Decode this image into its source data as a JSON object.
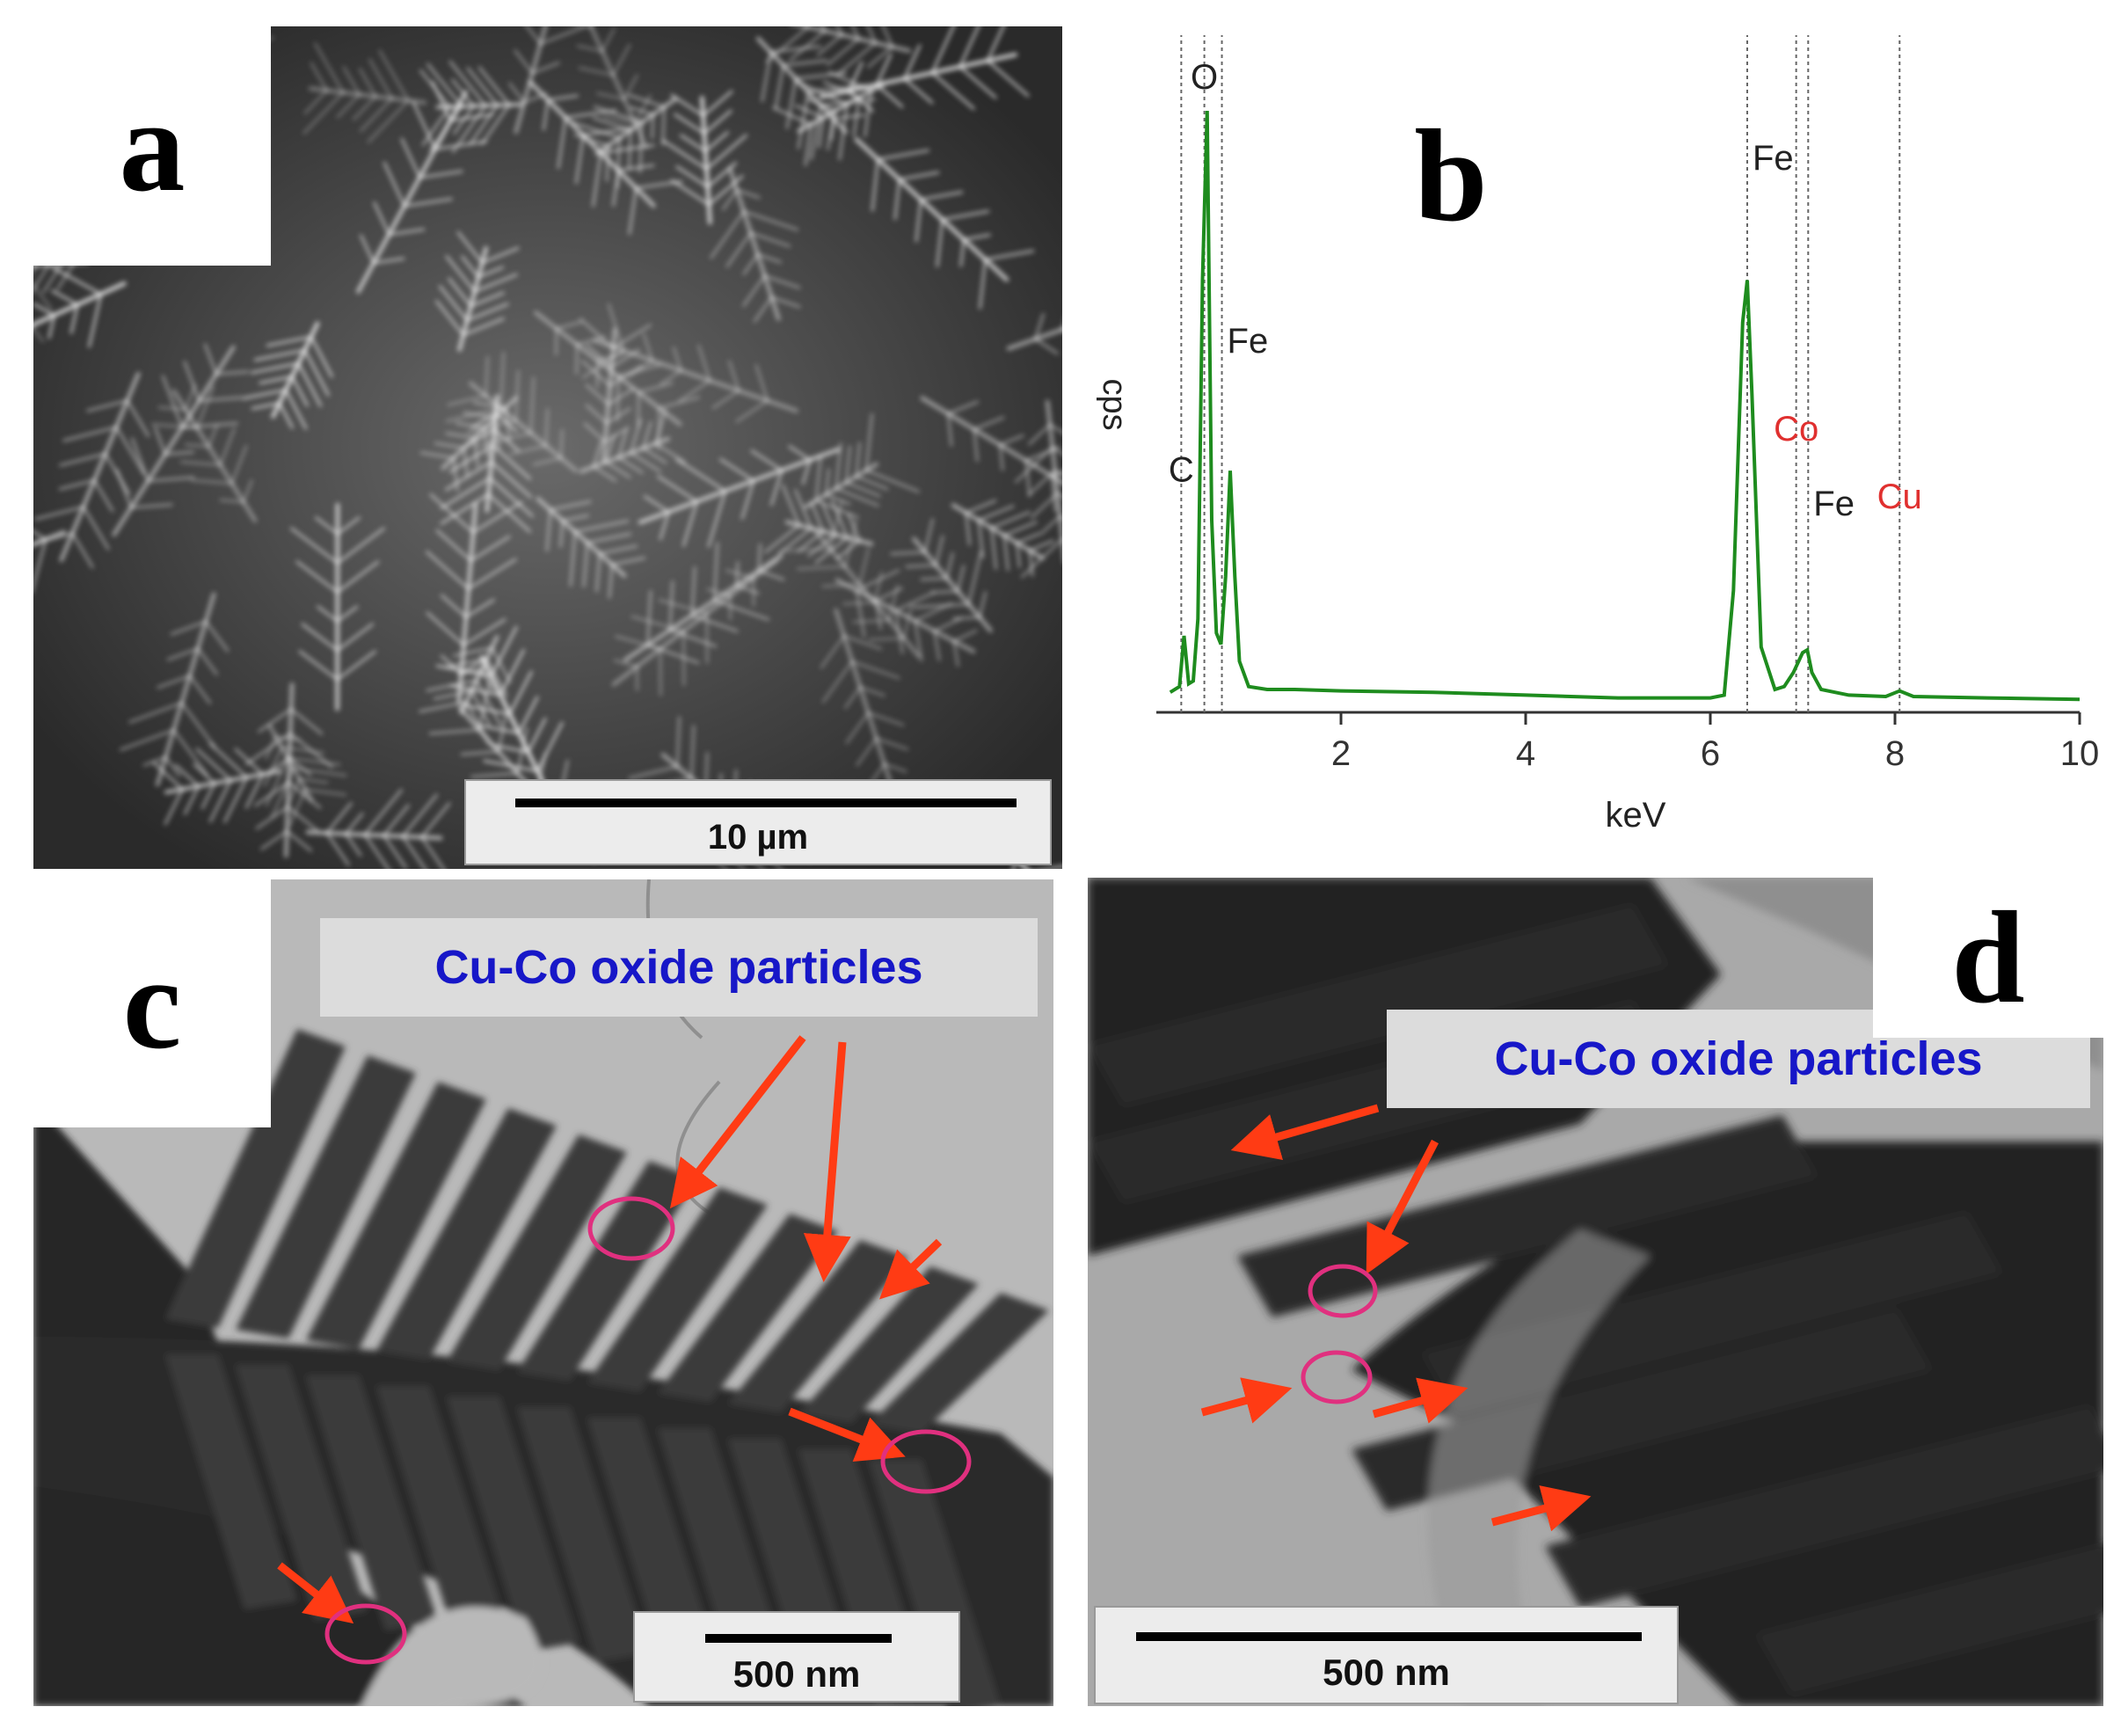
{
  "panels": {
    "a": {
      "label": "a",
      "scale_bar": "10 µm"
    },
    "b": {
      "label": "b",
      "chart_data": {
        "type": "line",
        "xlabel": "keV",
        "ylabel": "cps",
        "xlim": [
          0,
          10
        ],
        "x_ticks": [
          "2",
          "4",
          "6",
          "8",
          "10"
        ],
        "series": [
          {
            "x": [
              0.15,
              0.25,
              0.3,
              0.35,
              0.4,
              0.45,
              0.5,
              0.55,
              0.6,
              0.65,
              0.7,
              0.75,
              0.8,
              0.85,
              0.9,
              1.0,
              1.2,
              1.5,
              2.0,
              3.0,
              4.0,
              5.0,
              6.0,
              6.15,
              6.25,
              6.35,
              6.4,
              6.45,
              6.55,
              6.7,
              6.8,
              6.9,
              7.0,
              7.05,
              7.1,
              7.2,
              7.5,
              7.9,
              8.05,
              8.2,
              9.0,
              10.0
            ],
            "y": [
              8,
              12,
              48,
              14,
              16,
              60,
              300,
              420,
              130,
              50,
              42,
              90,
              165,
              90,
              30,
              12,
              10,
              10,
              9,
              8,
              6,
              4,
              4,
              6,
              80,
              270,
              300,
              220,
              40,
              10,
              12,
              22,
              36,
              38,
              22,
              10,
              6,
              5,
              9,
              5,
              4,
              3
            ]
          }
        ],
        "peaks": [
          {
            "label": "C",
            "x": 0.27
          },
          {
            "label": "O",
            "x": 0.52
          },
          {
            "label": "Fe",
            "x": 0.71
          },
          {
            "label": "Fe",
            "x": 6.4
          },
          {
            "label": "Co",
            "x": 6.93
          },
          {
            "label": "Fe",
            "x": 7.06
          },
          {
            "label": "Cu",
            "x": 8.05
          }
        ],
        "colors": {
          "line": "#1e8c1e",
          "peak_label_black": "#222222",
          "peak_label_red": "#e0302f"
        }
      }
    },
    "c": {
      "label": "c",
      "callout": "Cu-Co oxide particles",
      "scale_bar": "500 nm"
    },
    "d": {
      "label": "d",
      "callout": "Cu-Co oxide particles",
      "scale_bar": "500 nm"
    }
  },
  "colors": {
    "arrow": "#ff3b14",
    "circle": "#e0307f",
    "callout_text": "#1717c8"
  }
}
